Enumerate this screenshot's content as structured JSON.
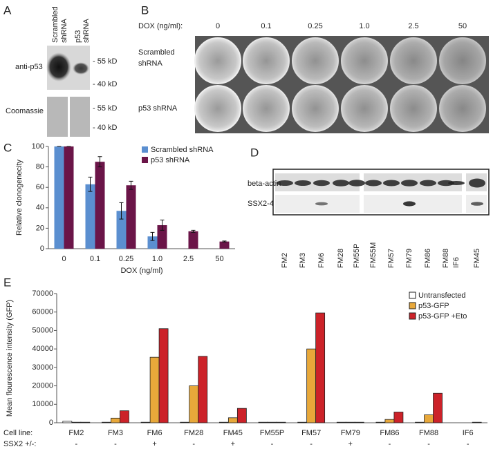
{
  "panel_a": {
    "letter": "A",
    "lanes": [
      [
        "Scrambled",
        "shRNA"
      ],
      [
        "p53",
        "shRNA"
      ]
    ],
    "rows": [
      "anti-p53",
      "Coomassie"
    ],
    "markers": [
      "- 55 kD",
      "- 40 kD"
    ]
  },
  "panel_b": {
    "letter": "B",
    "dose_label": "DOX (ng/ml):",
    "doses": [
      "0",
      "0.1",
      "0.25",
      "1.0",
      "2.5",
      "50"
    ],
    "rows": [
      [
        "Scrambled",
        "shRNA"
      ],
      [
        "p53 shRNA"
      ]
    ]
  },
  "panel_d": {
    "letter": "D",
    "rows": [
      "beta-actin",
      "SSX2-4"
    ],
    "lanes": [
      "FM2",
      "FM3",
      "FM6",
      "FM28",
      "FM55P",
      "FM55M",
      "FM57",
      "FM79",
      "FM86",
      "FM88",
      "IF6",
      "FM45"
    ]
  },
  "chart_data": [
    {
      "type": "bar",
      "panel_label": "C",
      "y_label": "Relative clonogenecity",
      "x_label": "DOX (ng/ml)",
      "categories": [
        "0",
        "0.1",
        "0.25",
        "1.0",
        "2.5",
        "50"
      ],
      "series": [
        {
          "name": "Scrambled shRNA",
          "color": "#5b8fd0",
          "values": [
            100,
            63,
            37,
            12,
            null,
            null
          ],
          "errors": [
            0,
            7,
            8,
            4,
            null,
            null
          ]
        },
        {
          "name": "p53 shRNA",
          "color": "#6b1548",
          "values": [
            100,
            85,
            62,
            23,
            17,
            7
          ],
          "errors": [
            0,
            5,
            4,
            5,
            1,
            0.5
          ]
        }
      ],
      "ylim": [
        0,
        100
      ],
      "yticks": [
        0,
        20,
        40,
        60,
        80,
        100
      ],
      "legend": "upper right"
    },
    {
      "type": "bar",
      "panel_label": "E",
      "y_label": "Mean flourescence intensity (GFP)",
      "categories": [
        "FM2",
        "FM3",
        "FM6",
        "FM28",
        "FM45",
        "FM55P",
        "FM57",
        "FM79",
        "FM86",
        "FM88",
        "IF6"
      ],
      "category_row_label": "Cell line:",
      "ssx2_row_label": "SSX2 +/-:",
      "ssx2": [
        "-",
        "-",
        "+",
        "-",
        "+",
        "-",
        "-",
        "+",
        "-",
        "-",
        "-"
      ],
      "series": [
        {
          "name": "Untransfected",
          "color": "#ffffff",
          "values": [
            800,
            300,
            300,
            300,
            300,
            300,
            300,
            300,
            300,
            300,
            0
          ]
        },
        {
          "name": "p53-GFP",
          "color": "#e8a83a",
          "values": [
            300,
            2500,
            35500,
            20000,
            2700,
            300,
            40000,
            300,
            1800,
            4300,
            0
          ]
        },
        {
          "name": "p53-GFP +Eto",
          "color": "#cc2229",
          "values": [
            300,
            6500,
            51000,
            36000,
            7800,
            300,
            59500,
            300,
            5800,
            16000,
            300
          ]
        }
      ],
      "ylim": [
        0,
        70000
      ],
      "yticks": [
        0,
        10000,
        20000,
        30000,
        40000,
        50000,
        60000,
        70000
      ],
      "legend": "upper right"
    }
  ]
}
